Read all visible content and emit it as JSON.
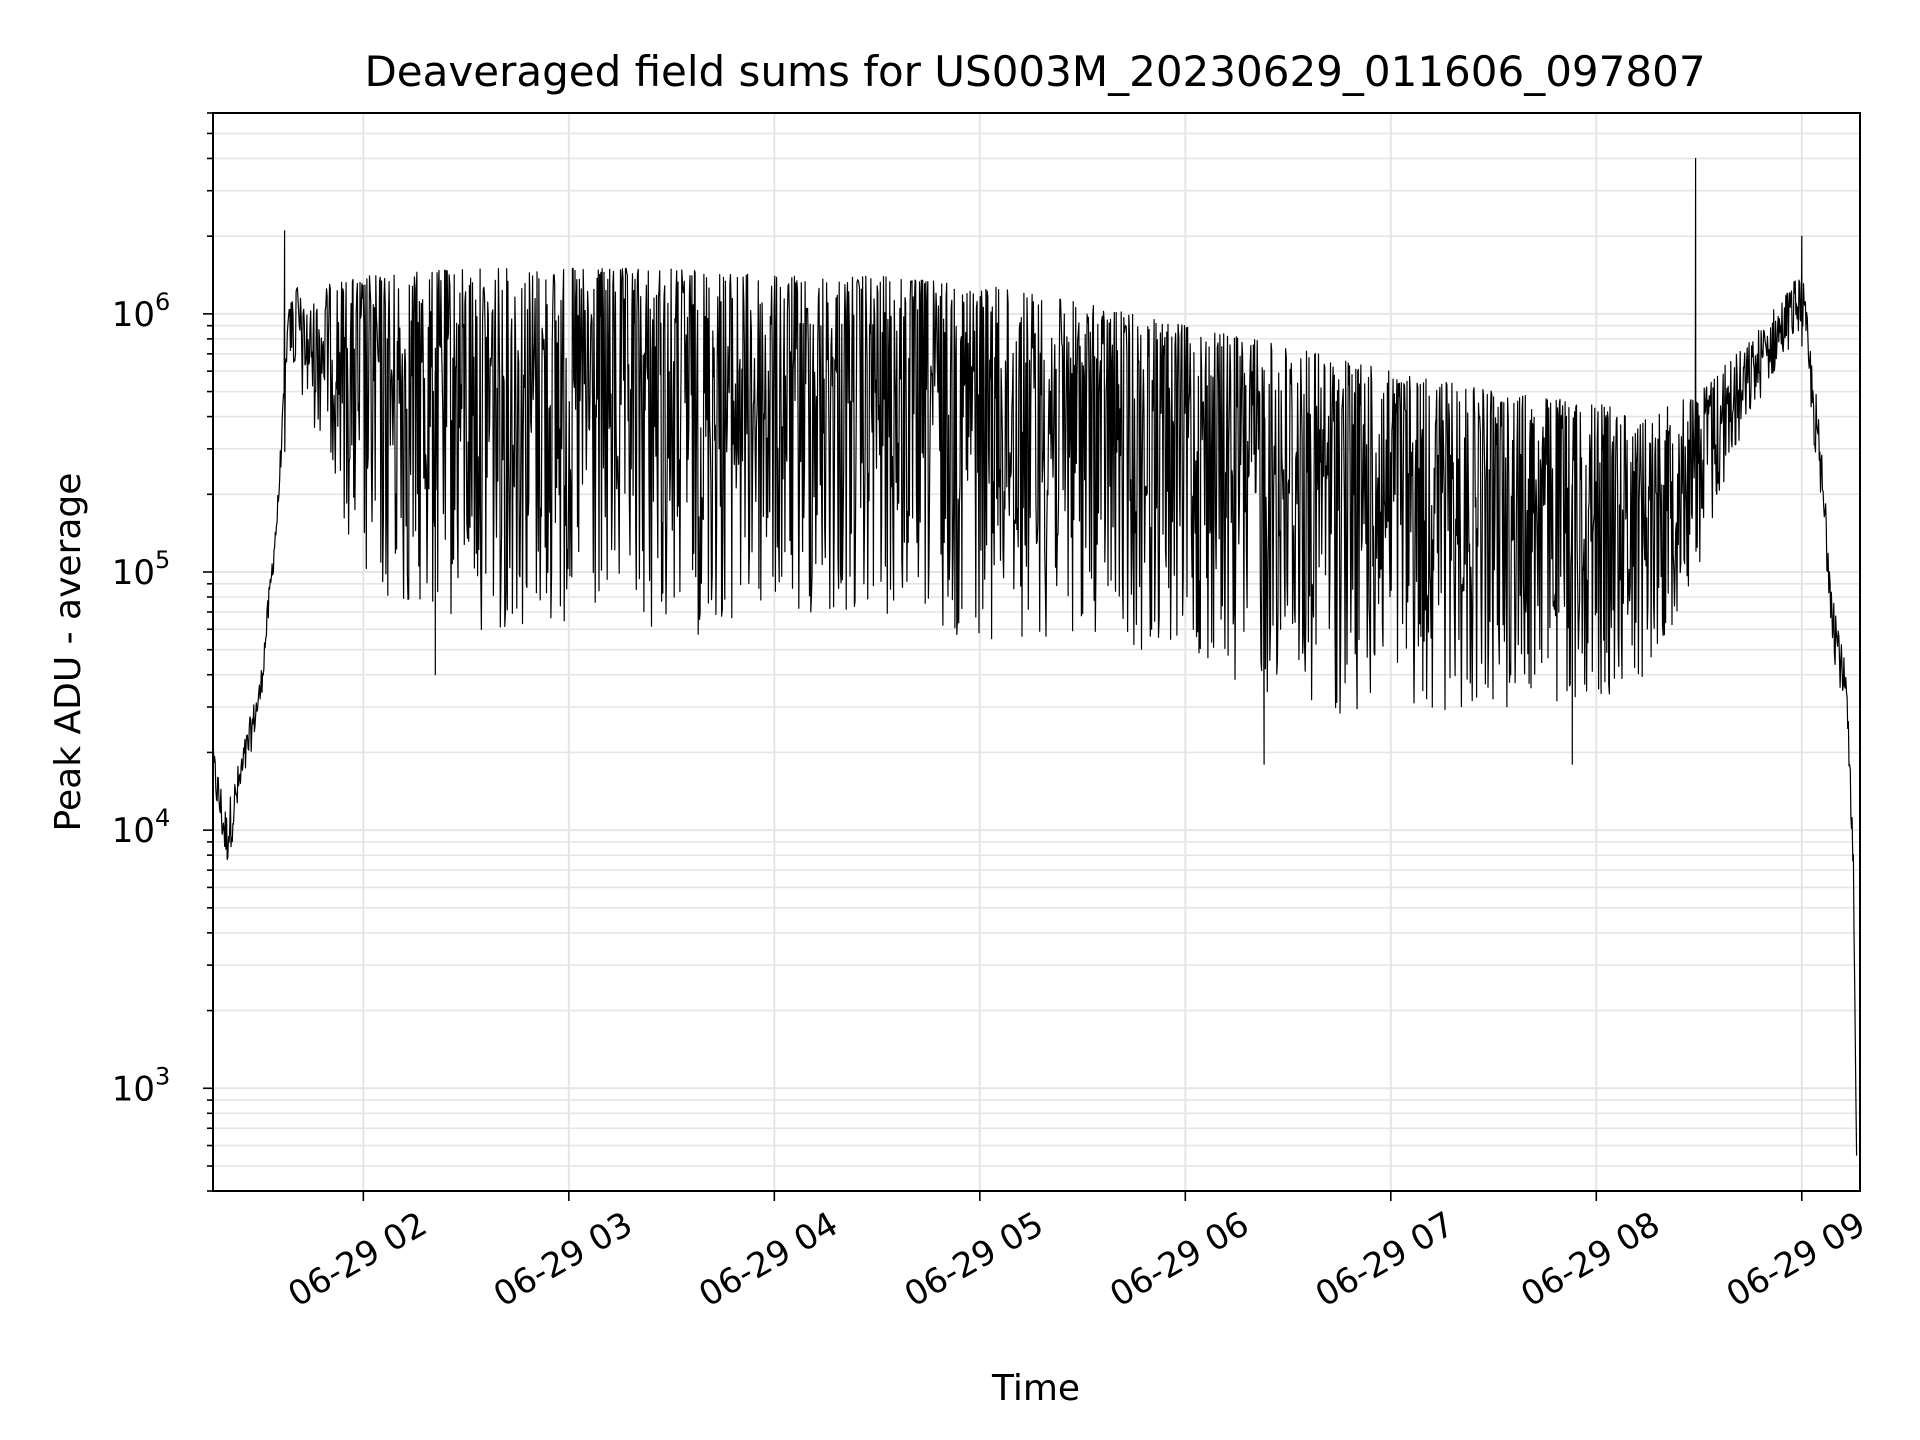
{
  "chart_data": {
    "type": "line",
    "title": "Deaveraged field sums for US003M_20230629_011606_097807",
    "xlabel": "Time",
    "ylabel": "Peak ADU - average",
    "yscale": "log",
    "ylim": [
      400,
      6000000
    ],
    "xlim": [
      "06-29 01:16:06",
      "06-29 09:17:00"
    ],
    "grid": true,
    "line_color": "#000000",
    "grid_color": "#e5e5e5",
    "x_ticks": [
      {
        "t": "2023-06-29T02:00:00",
        "label": "06-29 02"
      },
      {
        "t": "2023-06-29T03:00:00",
        "label": "06-29 03"
      },
      {
        "t": "2023-06-29T04:00:00",
        "label": "06-29 04"
      },
      {
        "t": "2023-06-29T05:00:00",
        "label": "06-29 05"
      },
      {
        "t": "2023-06-29T06:00:00",
        "label": "06-29 06"
      },
      {
        "t": "2023-06-29T07:00:00",
        "label": "06-29 07"
      },
      {
        "t": "2023-06-29T08:00:00",
        "label": "06-29 08"
      },
      {
        "t": "2023-06-29T09:00:00",
        "label": "06-29 09"
      }
    ],
    "y_ticks": [
      {
        "value": 1000,
        "base": "10",
        "exp": "3"
      },
      {
        "value": 10000,
        "base": "10",
        "exp": "4"
      },
      {
        "value": 100000,
        "base": "10",
        "exp": "5"
      },
      {
        "value": 1000000,
        "base": "10",
        "exp": "6"
      }
    ],
    "series": [
      {
        "envelope": {
          "time": [
            "06-29 01:16",
            "06-29 01:20",
            "06-29 01:30",
            "06-29 01:35",
            "06-29 01:38",
            "06-29 01:40",
            "06-29 01:43",
            "06-29 01:50",
            "06-29 02:00",
            "06-29 02:30",
            "06-29 03:00",
            "06-29 03:30",
            "06-29 04:00",
            "06-29 04:30",
            "06-29 05:00",
            "06-29 05:30",
            "06-29 06:00",
            "06-29 06:30",
            "06-29 07:00",
            "06-29 07:30",
            "06-29 08:00",
            "06-29 08:15",
            "06-29 08:30",
            "06-29 08:45",
            "06-29 09:00",
            "06-29 09:05",
            "06-29 09:10",
            "06-29 09:13",
            "06-29 09:15",
            "06-29 09:16"
          ],
          "upper": [
            22000,
            12000,
            40000,
            200000,
            1000000,
            1400000,
            1000000,
            1300000,
            1400000,
            1500000,
            1500000,
            1500000,
            1400000,
            1400000,
            1300000,
            1100000,
            900000,
            750000,
            600000,
            500000,
            450000,
            400000,
            500000,
            800000,
            1500000,
            400000,
            80000,
            40000,
            10000,
            600
          ],
          "lower": [
            15000,
            7000,
            30000,
            150000,
            800000,
            500000,
            400000,
            300000,
            70000,
            60000,
            55000,
            55000,
            60000,
            60000,
            55000,
            55000,
            45000,
            28000,
            28000,
            30000,
            30000,
            40000,
            100000,
            400000,
            900000,
            200000,
            40000,
            30000,
            5000,
            500
          ]
        },
        "spikes": [
          {
            "time": "06-29 01:37",
            "value": 2100000
          },
          {
            "time": "06-29 02:21",
            "value": 40000
          },
          {
            "time": "06-29 06:23",
            "value": 18000
          },
          {
            "time": "06-29 07:53",
            "value": 18000
          },
          {
            "time": "06-29 08:29",
            "value": 4000000
          },
          {
            "time": "06-29 09:00",
            "value": 2000000
          }
        ]
      }
    ]
  }
}
